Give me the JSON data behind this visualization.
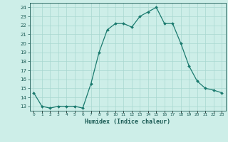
{
  "x": [
    0,
    1,
    2,
    3,
    4,
    5,
    6,
    7,
    8,
    9,
    10,
    11,
    12,
    13,
    14,
    15,
    16,
    17,
    18,
    19,
    20,
    21,
    22,
    23
  ],
  "y": [
    14.5,
    13.0,
    12.8,
    13.0,
    13.0,
    13.0,
    12.8,
    15.5,
    19.0,
    21.5,
    22.2,
    22.2,
    21.8,
    23.0,
    23.5,
    24.0,
    22.2,
    22.2,
    20.0,
    17.5,
    15.8,
    15.0,
    14.8,
    14.5
  ],
  "ylim": [
    12.5,
    24.5
  ],
  "yticks": [
    13,
    14,
    15,
    16,
    17,
    18,
    19,
    20,
    21,
    22,
    23,
    24
  ],
  "xlabel": "Humidex (Indice chaleur)",
  "line_color": "#1a7a6e",
  "marker_color": "#1a7a6e",
  "bg_color": "#cdeee8",
  "grid_color": "#a8d8d0",
  "label_color": "#1a5a54"
}
